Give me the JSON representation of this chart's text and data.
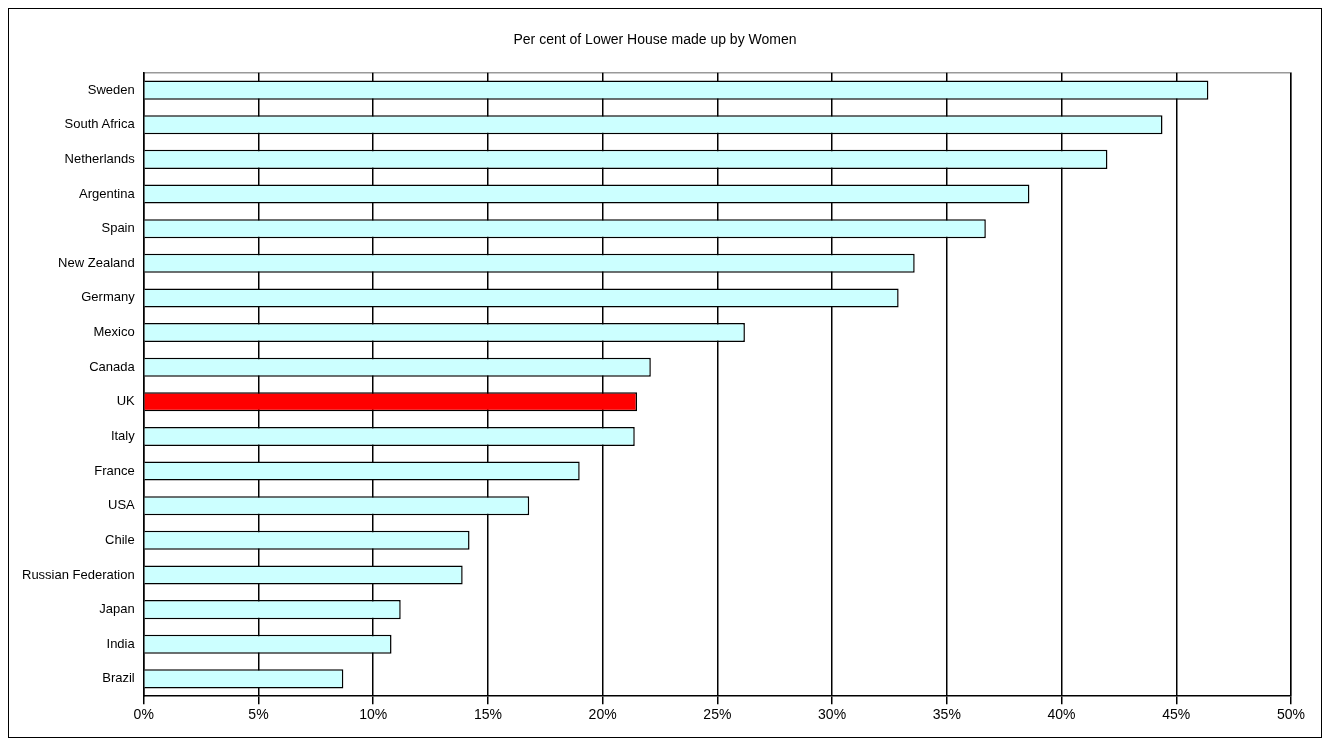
{
  "chart_data": {
    "type": "bar",
    "orientation": "horizontal",
    "title": "Per cent of Lower House made up by Women",
    "categories": [
      "Sweden",
      "South Africa",
      "Netherlands",
      "Argentina",
      "Spain",
      "New Zealand",
      "Germany",
      "Mexico",
      "Canada",
      "UK",
      "Italy",
      "France",
      "USA",
      "Chile",
      "Russian Federation",
      "Japan",
      "India",
      "Brazil"
    ],
    "values": [
      46.4,
      44.4,
      42.0,
      38.6,
      36.7,
      33.6,
      32.9,
      26.2,
      22.1,
      21.5,
      21.4,
      19.0,
      16.8,
      14.2,
      13.9,
      11.2,
      10.8,
      8.7
    ],
    "colors": [
      "#ccffff",
      "#ccffff",
      "#ccffff",
      "#ccffff",
      "#ccffff",
      "#ccffff",
      "#ccffff",
      "#ccffff",
      "#ccffff",
      "#ff0000",
      "#ccffff",
      "#ccffff",
      "#ccffff",
      "#ccffff",
      "#ccffff",
      "#ccffff",
      "#ccffff",
      "#ccffff"
    ],
    "xlim": [
      0,
      50
    ],
    "xticks": [
      {
        "value": 0,
        "label": "0%"
      },
      {
        "value": 5,
        "label": "5%"
      },
      {
        "value": 10,
        "label": "10%"
      },
      {
        "value": 15,
        "label": "15%"
      },
      {
        "value": 20,
        "label": "20%"
      },
      {
        "value": 25,
        "label": "25%"
      },
      {
        "value": 30,
        "label": "30%"
      },
      {
        "value": 35,
        "label": "35%"
      },
      {
        "value": 40,
        "label": "40%"
      },
      {
        "value": 45,
        "label": "45%"
      },
      {
        "value": 50,
        "label": "50%"
      }
    ],
    "grid": "x",
    "legend": false
  }
}
